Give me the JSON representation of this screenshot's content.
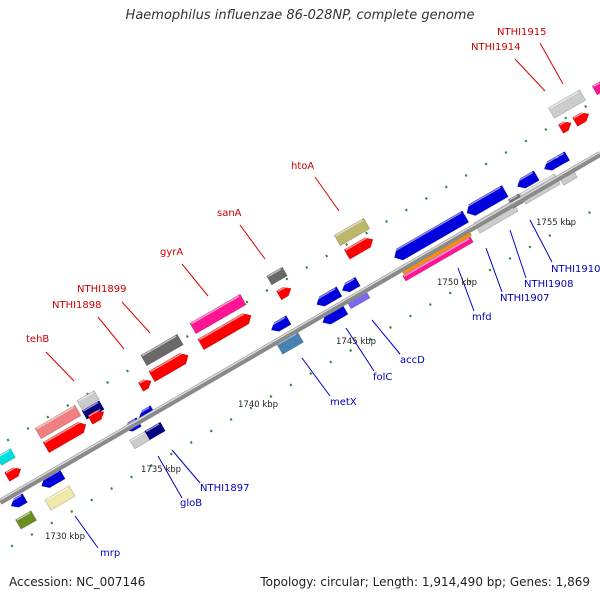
{
  "title": "Haemophilus influenzae 86-028NP, complete genome",
  "footer": {
    "accession": "Accession: NC_007146",
    "summary": "Topology: circular; Length: 1,914,490 bp; Genes: 1,869"
  },
  "colors": {
    "backbone": "#8a8a8a",
    "tick": "#2e8b2e",
    "label_red": "#cc0000",
    "label_blue": "#0000bb"
  },
  "ticks": [
    "1730 kbp",
    "1735 kbp",
    "1740 kbp",
    "1745 kbp",
    "1750 kbp",
    "1755 kbp"
  ],
  "labels_top": [
    "tehB",
    "NTHI1898",
    "NTHI1899",
    "gyrA",
    "sanA",
    "htoA",
    "NTHI1914",
    "NTHI1915"
  ],
  "labels_bottom": [
    "mrp",
    "gloB",
    "NTHI1897",
    "metX",
    "folC",
    "accD",
    "mfd",
    "NTHI1907",
    "NTHI1908",
    "NTHI1910"
  ]
}
